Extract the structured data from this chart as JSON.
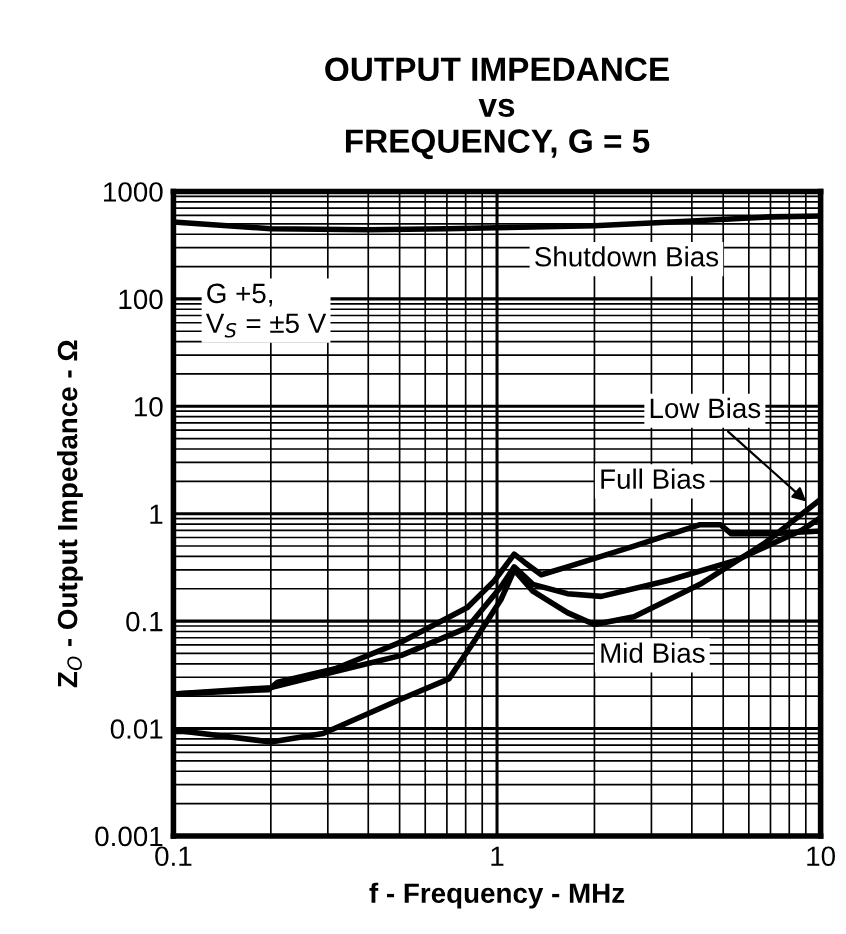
{
  "chart_data": {
    "type": "line",
    "title": "OUTPUT IMPEDANCE\nvs\nFREQUENCY, G = 5",
    "xlabel": "f - Frequency - MHz",
    "ylabel": "Z$_{O}$ - Output Impedance - Ω",
    "log": "xy",
    "xlim": [
      0.1,
      10
    ],
    "ylim": [
      0.001,
      1000
    ],
    "xticks": [
      0.1,
      1,
      10
    ],
    "yticks": [
      0.001,
      0.01,
      0.1,
      1,
      10,
      100,
      1000
    ],
    "grid": true,
    "marker": "none",
    "line_style": "solid",
    "series": [
      {
        "color": "#000000",
        "x": [
          0.1,
          0.2,
          0.4,
          0.7,
          1.0,
          2.0,
          4.0,
          7.0,
          10
        ],
        "values": [
          520,
          450,
          440,
          450,
          460,
          480,
          530,
          580,
          590
        ]
      },
      {
        "color": "#000000",
        "x": [
          0.1,
          0.197,
          0.21,
          0.316,
          0.506,
          0.81,
          0.98,
          1.13,
          1.22,
          1.37,
          1.65,
          2.65,
          4.24,
          4.9,
          5.3,
          7.0,
          10
        ],
        "values": [
          0.021,
          0.023,
          0.027,
          0.036,
          0.064,
          0.134,
          0.237,
          0.42,
          0.35,
          0.27,
          0.32,
          0.5,
          0.79,
          0.79,
          0.65,
          0.65,
          0.69
        ]
      },
      {
        "color": "#000000",
        "x": [
          0.1,
          0.2,
          0.316,
          0.506,
          0.81,
          1.03,
          1.13,
          1.29,
          1.65,
          2.1,
          3.4,
          5.5,
          8.8,
          10
        ],
        "values": [
          0.021,
          0.024,
          0.034,
          0.048,
          0.087,
          0.21,
          0.32,
          0.22,
          0.18,
          0.17,
          0.24,
          0.37,
          0.71,
          0.92
        ]
      },
      {
        "color": "#000000",
        "x": [
          0.1,
          0.2,
          0.29,
          0.51,
          0.71,
          0.85,
          1.03,
          1.13,
          1.29,
          1.65,
          2.0,
          2.65,
          4.24,
          6.7,
          10
        ],
        "values": [
          0.0097,
          0.0075,
          0.009,
          0.019,
          0.029,
          0.065,
          0.16,
          0.3,
          0.19,
          0.12,
          0.093,
          0.11,
          0.22,
          0.53,
          1.36
        ]
      }
    ],
    "annotations": [
      "Shutdown Bias",
      "G +5,\nV$_{S}$ = ±5 V",
      {
        "text": "Low Bias",
        "x": 9.3,
        "y": 1.2
      },
      "Full Bias",
      "Mid Bias"
    ]
  }
}
